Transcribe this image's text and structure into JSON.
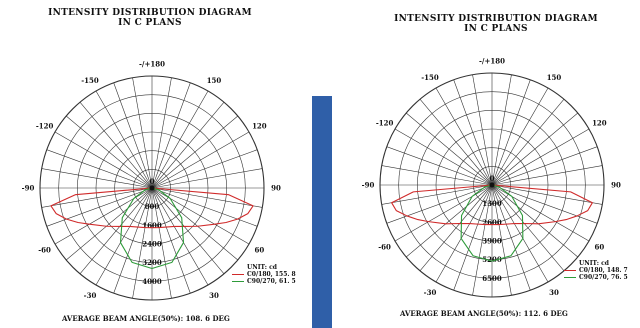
{
  "colors": {
    "grid": "#333333",
    "c0_series": "#d02a2a",
    "c90_series": "#2e9b3a",
    "divider": "#2f5fa8"
  },
  "chart_data": [
    {
      "type": "polar",
      "title_line1": "INTENSITY DISTRIBUTION DIAGRAM",
      "title_line2": "IN C PLANS",
      "angle_labels": [
        {
          "angle": 180,
          "text": "-/+180"
        },
        {
          "angle": -150,
          "text": "-150"
        },
        {
          "angle": 150,
          "text": "150"
        },
        {
          "angle": -120,
          "text": "-120"
        },
        {
          "angle": 120,
          "text": "120"
        },
        {
          "angle": -90,
          "text": "-90"
        },
        {
          "angle": 90,
          "text": "90"
        },
        {
          "angle": -60,
          "text": "-60"
        },
        {
          "angle": 60,
          "text": "60"
        },
        {
          "angle": -30,
          "text": "-30"
        },
        {
          "angle": 30,
          "text": "30"
        }
      ],
      "center_label": "0",
      "r_max": 4800,
      "ring_labels": [
        {
          "value": 800,
          "text": "800"
        },
        {
          "value": 1600,
          "text": "1600"
        },
        {
          "value": 2400,
          "text": "2400"
        },
        {
          "value": 3200,
          "text": "3200"
        },
        {
          "value": 4000,
          "text": "4000"
        }
      ],
      "unit_label": "UNIT: cd",
      "series": [
        {
          "name": "C0/180, 155. 8",
          "color_key": "c0_series",
          "angles": [
            -90,
            -85,
            -80,
            -75,
            -70,
            -65,
            -60,
            -50,
            -40,
            -30,
            -20,
            -10,
            0,
            10,
            20,
            30,
            40,
            50,
            60,
            65,
            70,
            75,
            80,
            85,
            90
          ],
          "values": [
            0,
            3300,
            4400,
            4250,
            3900,
            3500,
            3100,
            2550,
            2150,
            1900,
            1780,
            1720,
            1700,
            1720,
            1780,
            1900,
            2150,
            2550,
            3100,
            3500,
            3900,
            4250,
            4400,
            3300,
            0
          ]
        },
        {
          "name": "C90/270, 61. 5",
          "color_key": "c90_series",
          "angles": [
            -90,
            -75,
            -60,
            -45,
            -30,
            -15,
            0,
            15,
            30,
            45,
            60,
            75,
            90
          ],
          "values": [
            0,
            300,
            900,
            1800,
            2700,
            3300,
            3450,
            3300,
            2700,
            1800,
            900,
            300,
            0
          ]
        }
      ],
      "beam_angle_text": "AVERAGE BEAM ANGLE(50%): 108. 6  DEG"
    },
    {
      "type": "polar",
      "title_line1": "INTENSITY DISTRIBUTION DIAGRAM",
      "title_line2": "IN C PLANS",
      "angle_labels": [
        {
          "angle": 180,
          "text": "-/+180"
        },
        {
          "angle": -150,
          "text": "-150"
        },
        {
          "angle": 150,
          "text": "150"
        },
        {
          "angle": -120,
          "text": "-120"
        },
        {
          "angle": 120,
          "text": "120"
        },
        {
          "angle": -90,
          "text": "-90"
        },
        {
          "angle": 90,
          "text": "90"
        },
        {
          "angle": -60,
          "text": "-60"
        },
        {
          "angle": 60,
          "text": "60"
        },
        {
          "angle": -30,
          "text": "-30"
        },
        {
          "angle": 30,
          "text": "30"
        }
      ],
      "center_label": "0",
      "r_max": 7800,
      "ring_labels": [
        {
          "value": 1300,
          "text": "1300"
        },
        {
          "value": 2600,
          "text": "2600"
        },
        {
          "value": 3900,
          "text": "3900"
        },
        {
          "value": 5200,
          "text": "5200"
        },
        {
          "value": 6500,
          "text": "6500"
        }
      ],
      "unit_label": "UNIT: cd",
      "series": [
        {
          "name": "C0/180, 148. 7",
          "color_key": "c0_series",
          "angles": [
            -90,
            -85,
            -80,
            -75,
            -70,
            -65,
            -60,
            -50,
            -40,
            -30,
            -20,
            -10,
            0,
            10,
            20,
            30,
            40,
            50,
            60,
            65,
            70,
            75,
            80,
            85,
            90
          ],
          "values": [
            0,
            5500,
            7100,
            6900,
            6300,
            5700,
            5100,
            4200,
            3500,
            3100,
            2900,
            2800,
            2750,
            2800,
            2900,
            3100,
            3500,
            4200,
            5100,
            5700,
            6300,
            6900,
            7100,
            5500,
            0
          ]
        },
        {
          "name": "C90/270, 76. 5",
          "color_key": "c90_series",
          "angles": [
            -90,
            -75,
            -60,
            -45,
            -30,
            -15,
            0,
            15,
            30,
            45,
            60,
            75,
            90
          ],
          "values": [
            0,
            500,
            1600,
            3000,
            4300,
            5100,
            5300,
            5100,
            4300,
            3000,
            1600,
            500,
            0
          ]
        }
      ],
      "beam_angle_text": "AVERAGE BEAM ANGLE(50%): 112. 6  DEG"
    }
  ]
}
